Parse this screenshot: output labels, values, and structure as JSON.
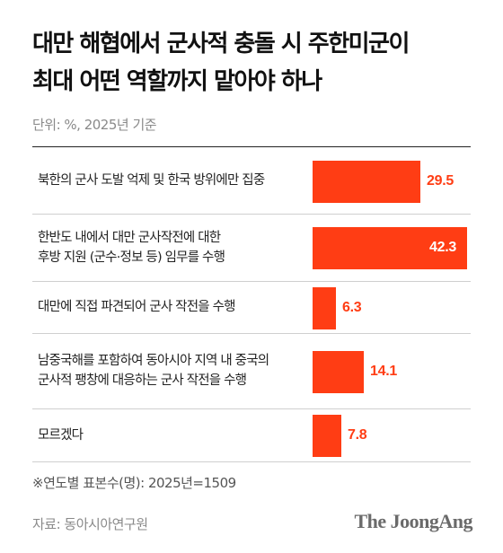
{
  "chart_data": {
    "type": "bar",
    "title": "대만 해협에서 군사적 충돌 시 주한미군이\n최대 어떤 역할까지 맡아야 하나",
    "subtitle": "단위: %, 2025년 기준",
    "categories": [
      "북한의 군사 도발 억제 및 한국 방위에만 집중",
      "한반도 내에서 대만 군사작전에 대한\n후방 지원 (군수·정보 등) 임무를 수행",
      "대만에 직접 파견되어 군사 작전을 수행",
      "남중국해를 포함하여 동아시아 지역 내 중국의\n군사적 팽창에 대응하는 군사 작전을 수행",
      "모르겠다"
    ],
    "values": [
      29.5,
      42.3,
      6.3,
      14.1,
      7.8
    ],
    "value_labels": [
      "29.5",
      "42.3",
      "6.3",
      "14.1",
      "7.8"
    ],
    "bar_color": "#ff3d14",
    "xlim": [
      0,
      42.3
    ],
    "orientation": "horizontal",
    "grid": false,
    "footnote": "※연도별 표본수(명): 2025년=1509",
    "source": "자료: 동아시아연구원",
    "brand": "The JoongAng"
  }
}
